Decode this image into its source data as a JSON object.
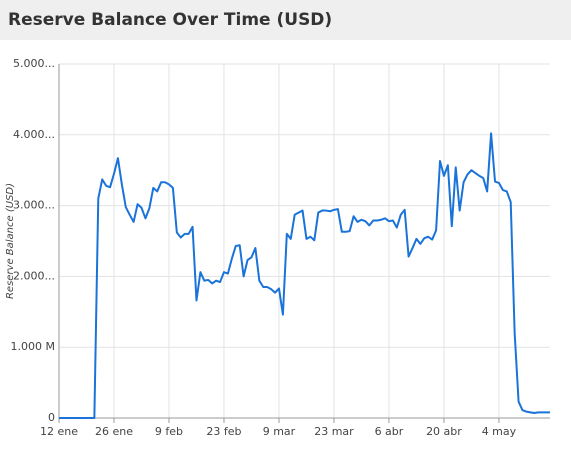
{
  "chart_data": {
    "type": "line",
    "title": "Reserve Balance Over Time (USD)",
    "y_label": "Reserve Balance (USD)",
    "categories": [
      "12 ene",
      null,
      null,
      null,
      null,
      null,
      null,
      null,
      null,
      null,
      null,
      null,
      null,
      null,
      "26 ene",
      null,
      null,
      null,
      null,
      null,
      null,
      null,
      null,
      null,
      null,
      null,
      null,
      null,
      "9 feb",
      null,
      null,
      null,
      null,
      null,
      null,
      null,
      null,
      null,
      null,
      null,
      null,
      null,
      "23 feb",
      null,
      null,
      null,
      null,
      null,
      null,
      null,
      null,
      null,
      null,
      null,
      null,
      null,
      "9 mar",
      null,
      null,
      null,
      null,
      null,
      null,
      null,
      null,
      null,
      null,
      null,
      null,
      null,
      "23 mar",
      null,
      null,
      null,
      null,
      null,
      null,
      null,
      null,
      null,
      null,
      null,
      null,
      null,
      "6 abr",
      null,
      null,
      null,
      null,
      null,
      null,
      null,
      null,
      null,
      null,
      null,
      null,
      null,
      "20 abr",
      null,
      null,
      null,
      null,
      null,
      null,
      null,
      null,
      null,
      null,
      null,
      null,
      null,
      "4 may",
      null,
      null,
      null,
      null,
      null,
      null,
      null,
      null,
      null,
      null,
      null,
      null,
      null
    ],
    "values": [
      0,
      0,
      0,
      0,
      0,
      0,
      0,
      0,
      0,
      0,
      3100,
      3370,
      3280,
      3260,
      3450,
      3670,
      3300,
      2980,
      2870,
      2770,
      3020,
      2970,
      2820,
      2960,
      3250,
      3200,
      3330,
      3330,
      3300,
      3250,
      2620,
      2550,
      2600,
      2600,
      2700,
      1660,
      2060,
      1940,
      1950,
      1900,
      1940,
      1920,
      2060,
      2040,
      2250,
      2430,
      2440,
      2000,
      2230,
      2270,
      2400,
      1940,
      1850,
      1850,
      1820,
      1770,
      1830,
      1460,
      2600,
      2530,
      2870,
      2900,
      2930,
      2530,
      2560,
      2510,
      2900,
      2930,
      2930,
      2920,
      2940,
      2950,
      2630,
      2630,
      2640,
      2850,
      2770,
      2800,
      2780,
      2720,
      2790,
      2790,
      2800,
      2820,
      2780,
      2790,
      2690,
      2870,
      2940,
      2280,
      2400,
      2530,
      2460,
      2540,
      2560,
      2520,
      2650,
      3630,
      3420,
      3570,
      2710,
      3540,
      2930,
      3330,
      3440,
      3500,
      3460,
      3420,
      3390,
      3200,
      4020,
      3340,
      3320,
      3220,
      3200,
      3050,
      1200,
      230,
      110,
      90,
      80,
      70,
      80,
      80,
      80,
      80
    ],
    "color": "#1a73d9",
    "ylim": [
      0,
      5000
    ],
    "yticks": [
      0,
      {
        "value": 1000,
        "label": "1.000 M"
      },
      {
        "value": 2000,
        "label": "2.000..."
      },
      {
        "value": 3000,
        "label": "3.000..."
      },
      {
        "value": 4000,
        "label": "4.000..."
      },
      {
        "value": 5000,
        "label": "5.000..."
      }
    ],
    "grid": true
  }
}
